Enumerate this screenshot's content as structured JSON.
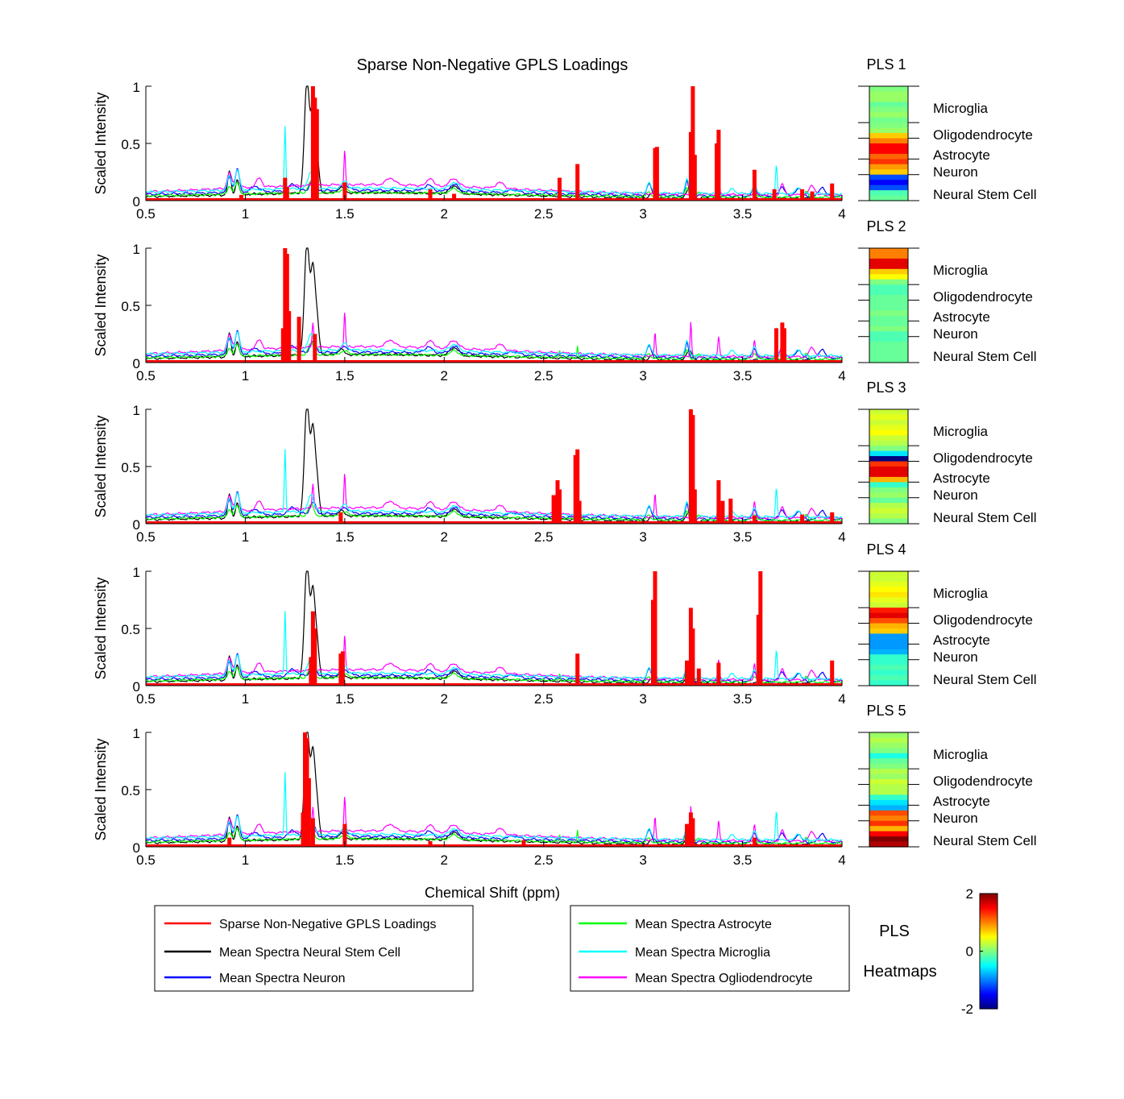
{
  "chart_data": {
    "type": "line",
    "title": "Sparse Non-Negative GPLS Loadings",
    "xlabel": "Chemical Shift (ppm)",
    "ylabel": "Scaled Intensity",
    "xlim": [
      0.5,
      4
    ],
    "ylim": [
      0,
      1
    ],
    "xticks": [
      "0.5",
      "1",
      "1.5",
      "2",
      "2.5",
      "3",
      "3.5",
      "4"
    ],
    "xtick_values": [
      0.5,
      1,
      1.5,
      2,
      2.5,
      3,
      3.5,
      4
    ],
    "yticks": [
      "0",
      "0.5",
      "1"
    ],
    "ytick_values": [
      0,
      0.5,
      1
    ],
    "colors": {
      "loadings": "#ff0000",
      "neural_stem_cell": "#000000",
      "neuron": "#0000ff",
      "astrocyte": "#00ff00",
      "microglia": "#00ffff",
      "oligodendrocyte": "#ff00ff"
    },
    "mean_spectra_peaks": {
      "neural_stem_cell": [
        [
          0.92,
          0.2,
          0.012
        ],
        [
          0.96,
          0.13,
          0.012
        ],
        [
          1.31,
          0.97,
          0.018
        ],
        [
          1.34,
          0.7,
          0.015
        ],
        [
          1.36,
          0.3,
          0.015
        ],
        [
          1.48,
          0.05,
          0.02
        ],
        [
          2.05,
          0.07,
          0.03
        ],
        [
          3.05,
          0.04,
          0.02
        ],
        [
          3.23,
          0.08,
          0.02
        ]
      ],
      "neuron": [
        [
          0.92,
          0.14,
          0.015
        ],
        [
          0.96,
          0.2,
          0.015
        ],
        [
          1.05,
          0.05,
          0.03
        ],
        [
          1.24,
          0.06,
          0.03
        ],
        [
          1.34,
          0.1,
          0.02
        ],
        [
          1.5,
          0.05,
          0.03
        ],
        [
          1.92,
          0.05,
          0.03
        ],
        [
          2.05,
          0.06,
          0.03
        ],
        [
          2.35,
          0.03,
          0.03
        ],
        [
          3.03,
          0.1,
          0.015
        ],
        [
          3.22,
          0.12,
          0.012
        ],
        [
          3.56,
          0.08,
          0.015
        ],
        [
          3.7,
          0.08,
          0.02
        ],
        [
          3.78,
          0.07,
          0.02
        ],
        [
          3.9,
          0.08,
          0.02
        ]
      ],
      "astrocyte": [
        [
          0.92,
          0.07,
          0.015
        ],
        [
          0.96,
          0.1,
          0.015
        ],
        [
          1.33,
          0.1,
          0.02
        ],
        [
          1.5,
          0.04,
          0.02
        ],
        [
          2.05,
          0.04,
          0.03
        ],
        [
          2.58,
          0.06,
          0.004
        ],
        [
          2.67,
          0.1,
          0.004
        ],
        [
          3.03,
          0.04,
          0.015
        ],
        [
          3.22,
          0.08,
          0.012
        ],
        [
          3.28,
          0.04,
          0.015
        ],
        [
          3.56,
          0.05,
          0.015
        ],
        [
          3.82,
          0.06,
          0.01
        ]
      ],
      "microglia": [
        [
          0.92,
          0.12,
          0.015
        ],
        [
          0.96,
          0.18,
          0.015
        ],
        [
          1.2,
          0.56,
          0.005
        ],
        [
          1.33,
          0.15,
          0.02
        ],
        [
          1.5,
          0.06,
          0.02
        ],
        [
          2.05,
          0.06,
          0.03
        ],
        [
          3.03,
          0.09,
          0.015
        ],
        [
          3.22,
          0.13,
          0.012
        ],
        [
          3.45,
          0.05,
          0.015
        ],
        [
          3.56,
          0.07,
          0.015
        ],
        [
          3.67,
          0.25,
          0.006
        ],
        [
          3.78,
          0.06,
          0.015
        ]
      ],
      "oligodendrocyte": [
        [
          0.92,
          0.14,
          0.015
        ],
        [
          0.96,
          0.16,
          0.015
        ],
        [
          1.07,
          0.08,
          0.02
        ],
        [
          1.34,
          0.22,
          0.006
        ],
        [
          1.5,
          0.3,
          0.005
        ],
        [
          1.73,
          0.06,
          0.03
        ],
        [
          1.93,
          0.07,
          0.02
        ],
        [
          2.05,
          0.07,
          0.03
        ],
        [
          2.28,
          0.05,
          0.03
        ],
        [
          3.06,
          0.2,
          0.005
        ],
        [
          3.24,
          0.3,
          0.005
        ],
        [
          3.38,
          0.17,
          0.006
        ],
        [
          3.56,
          0.15,
          0.006
        ],
        [
          3.7,
          0.09,
          0.015
        ],
        [
          3.85,
          0.08,
          0.02
        ]
      ]
    },
    "mean_spectra_baseline": {
      "neural_stem_cell": [
        0.02,
        0.05
      ],
      "neuron": [
        0.04,
        0.05
      ],
      "astrocyte": [
        0.03,
        0.04
      ],
      "microglia": [
        0.06,
        0.05
      ],
      "oligodendrocyte": [
        0.05,
        0.09
      ]
    },
    "panels": [
      {
        "label": "PLS 1",
        "loadings": [
          [
            0.98,
            0.05
          ],
          [
            1.2,
            0.2
          ],
          [
            1.21,
            0.12
          ],
          [
            1.34,
            1.0
          ],
          [
            1.35,
            0.9
          ],
          [
            1.36,
            0.8
          ],
          [
            1.5,
            0.16
          ],
          [
            1.93,
            0.1
          ],
          [
            2.05,
            0.06
          ],
          [
            2.58,
            0.2
          ],
          [
            2.67,
            0.32
          ],
          [
            3.06,
            0.46
          ],
          [
            3.07,
            0.47
          ],
          [
            3.24,
            0.6
          ],
          [
            3.25,
            1.0
          ],
          [
            3.26,
            0.4
          ],
          [
            3.37,
            0.5
          ],
          [
            3.38,
            0.62
          ],
          [
            3.56,
            0.27
          ],
          [
            3.66,
            0.1
          ],
          [
            3.8,
            0.1
          ],
          [
            3.85,
            0.08
          ],
          [
            3.95,
            0.15
          ]
        ],
        "heatmap": [
          0.0,
          0.1,
          0.1,
          -0.1,
          0.0,
          0.1,
          -0.05,
          0.0,
          0.1,
          0.7,
          1.0,
          1.5,
          1.5,
          1.1,
          1.3,
          0.9,
          0.7,
          -1.2,
          -1.5,
          -1.2,
          -0.2,
          -0.1
        ]
      },
      {
        "label": "PLS 2",
        "loadings": [
          [
            1.19,
            0.3
          ],
          [
            1.2,
            1.0
          ],
          [
            1.21,
            0.95
          ],
          [
            1.22,
            0.45
          ],
          [
            1.27,
            0.4
          ],
          [
            1.35,
            0.25
          ],
          [
            3.67,
            0.3
          ],
          [
            3.7,
            0.35
          ],
          [
            3.71,
            0.3
          ]
        ],
        "heatmap": [
          1.0,
          1.0,
          1.6,
          1.6,
          0.7,
          0.5,
          0.0,
          -0.2,
          -0.2,
          -0.1,
          -0.1,
          -0.1,
          0.0,
          -0.1,
          -0.1,
          0.0,
          -0.2,
          -0.2,
          -0.1,
          -0.1,
          -0.1,
          -0.1
        ]
      },
      {
        "label": "PLS 3",
        "loadings": [
          [
            1.48,
            0.1
          ],
          [
            2.55,
            0.25
          ],
          [
            2.57,
            0.38
          ],
          [
            2.58,
            0.3
          ],
          [
            2.66,
            0.6
          ],
          [
            2.67,
            0.65
          ],
          [
            2.68,
            0.2
          ],
          [
            3.24,
            1.0
          ],
          [
            3.25,
            0.95
          ],
          [
            3.26,
            0.3
          ],
          [
            3.38,
            0.38
          ],
          [
            3.4,
            0.2
          ],
          [
            3.44,
            0.22
          ],
          [
            3.56,
            0.07
          ],
          [
            3.8,
            0.08
          ],
          [
            3.95,
            0.1
          ]
        ],
        "heatmap": [
          0.3,
          0.4,
          0.3,
          0.4,
          0.5,
          0.3,
          0.2,
          0.0,
          -0.6,
          -2.2,
          1.3,
          1.6,
          1.6,
          0.8,
          -0.3,
          0.0,
          0.1,
          -0.1,
          0.2,
          0.3,
          0.2,
          0.0
        ]
      },
      {
        "label": "PLS 4",
        "loadings": [
          [
            1.33,
            0.25
          ],
          [
            1.34,
            0.65
          ],
          [
            1.35,
            0.5
          ],
          [
            1.48,
            0.28
          ],
          [
            1.49,
            0.3
          ],
          [
            2.67,
            0.28
          ],
          [
            3.05,
            0.75
          ],
          [
            3.06,
            1.0
          ],
          [
            3.22,
            0.22
          ],
          [
            3.24,
            0.68
          ],
          [
            3.25,
            0.5
          ],
          [
            3.28,
            0.15
          ],
          [
            3.38,
            0.2
          ],
          [
            3.58,
            0.62
          ],
          [
            3.59,
            1.0
          ],
          [
            3.95,
            0.22
          ]
        ],
        "heatmap": [
          0.3,
          0.3,
          0.4,
          0.5,
          0.6,
          0.4,
          0.3,
          1.4,
          1.6,
          1.2,
          0.8,
          0.7,
          -0.9,
          -0.9,
          -0.9,
          -0.8,
          -0.3,
          -0.3,
          -0.2,
          -0.3,
          -0.2,
          -0.3
        ]
      },
      {
        "label": "PLS 5",
        "loadings": [
          [
            0.92,
            0.08
          ],
          [
            1.29,
            0.3
          ],
          [
            1.3,
            1.0
          ],
          [
            1.31,
            0.95
          ],
          [
            1.32,
            0.6
          ],
          [
            1.34,
            0.25
          ],
          [
            1.5,
            0.2
          ],
          [
            1.93,
            0.05
          ],
          [
            2.4,
            0.06
          ],
          [
            3.22,
            0.2
          ],
          [
            3.24,
            0.3
          ],
          [
            3.25,
            0.25
          ],
          [
            3.56,
            0.08
          ]
        ],
        "heatmap": [
          0.1,
          0.2,
          0.1,
          0.0,
          -0.4,
          -0.1,
          0.0,
          0.2,
          0.1,
          0.3,
          0.2,
          0.2,
          -0.3,
          -0.6,
          -0.8,
          1.2,
          1.0,
          1.3,
          0.8,
          1.5,
          2.1,
          1.8
        ]
      }
    ],
    "heatmap_row_labels": [
      "Microglia",
      "Oligodendrocyte",
      "Astrocyte",
      "Neuron",
      "Neural Stem Cell"
    ],
    "heatmap_row_bounds": [
      0,
      7,
      10,
      14,
      17,
      22
    ],
    "legend_left": [
      {
        "label": "Sparse Non-Negative GPLS Loadings",
        "key": "loadings"
      },
      {
        "label": "Mean Spectra Neural Stem Cell",
        "key": "neural_stem_cell"
      },
      {
        "label": "Mean Spectra Neuron",
        "key": "neuron"
      }
    ],
    "legend_right": [
      {
        "label": "Mean Spectra Astrocyte",
        "key": "astrocyte"
      },
      {
        "label": "Mean Spectra Microglia",
        "key": "microglia"
      },
      {
        "label": "Mean Spectra Ogliodendrocyte",
        "key": "oligodendrocyte"
      }
    ],
    "heatmap_title_line1": "PLS",
    "heatmap_title_line2": "Heatmaps",
    "colorbar": {
      "range": [
        -2,
        2
      ],
      "ticks": [
        {
          "value": 2,
          "label": "2"
        },
        {
          "value": 0,
          "label": "0"
        },
        {
          "value": -2,
          "label": "-2"
        }
      ]
    }
  }
}
